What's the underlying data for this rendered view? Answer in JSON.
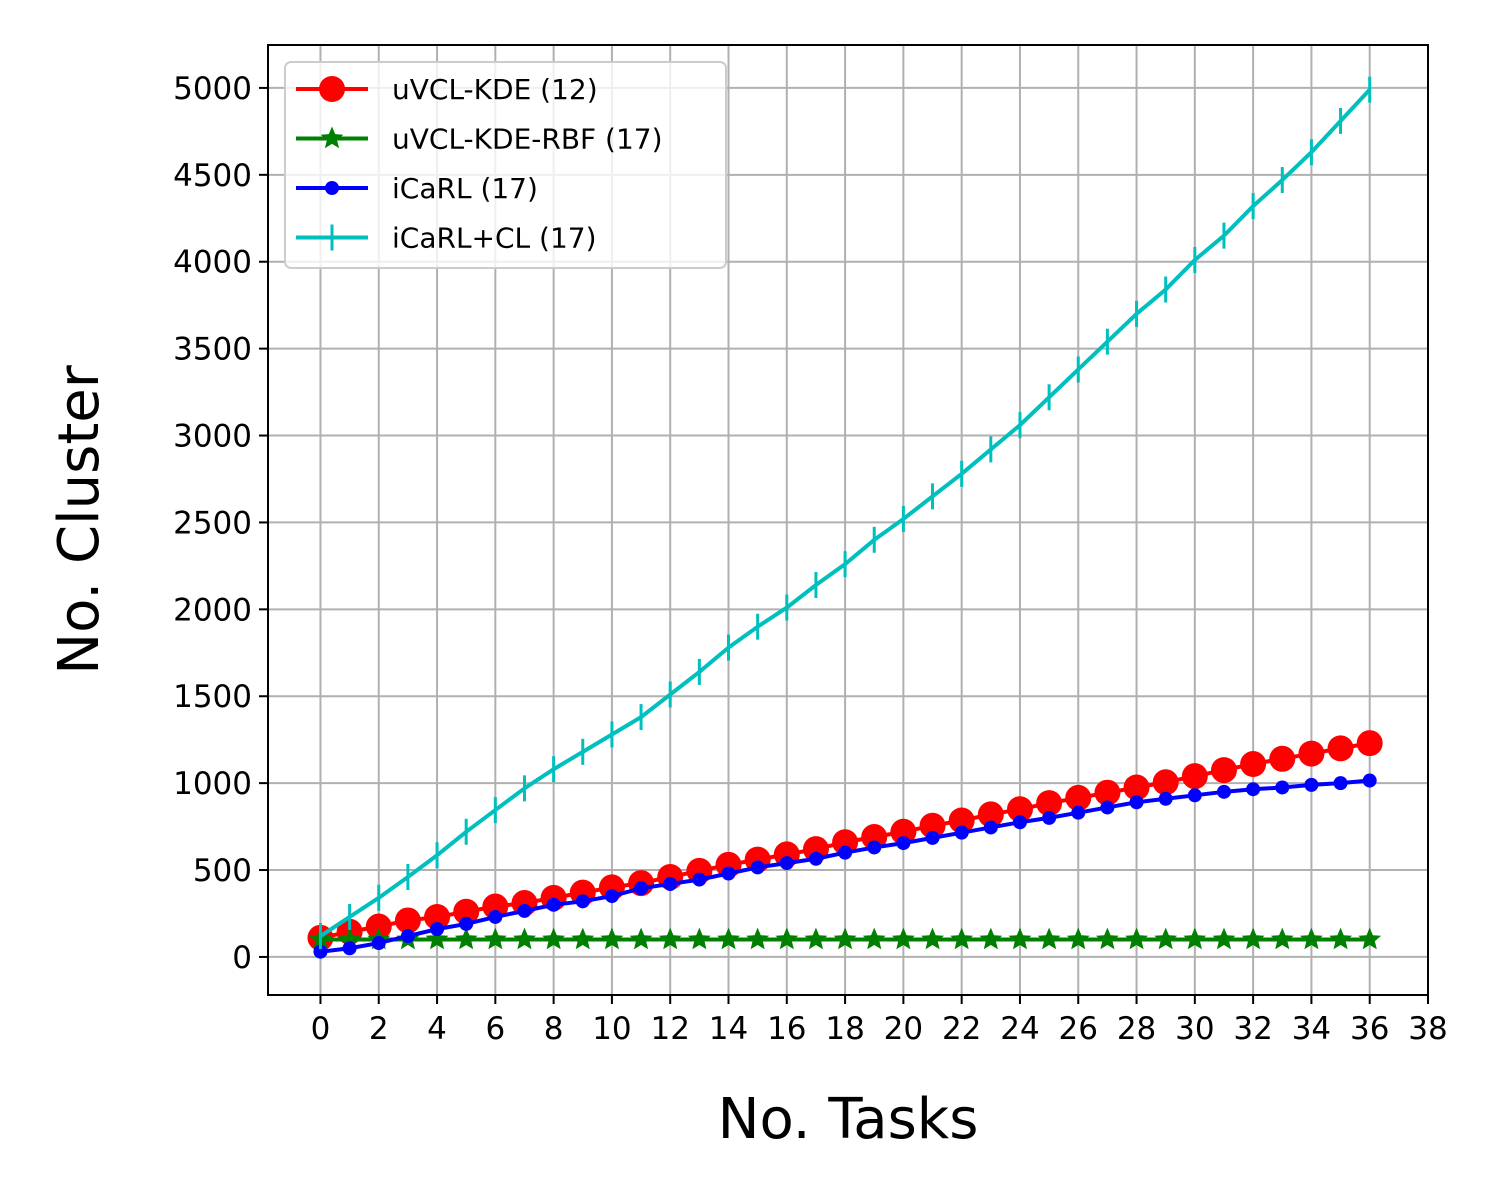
{
  "chart_data": {
    "type": "line",
    "title": "",
    "xlabel": "No. Tasks",
    "ylabel": "No. Cluster",
    "xlim": [
      -1.8,
      38
    ],
    "ylim": [
      -219,
      5247
    ],
    "xticks": [
      0,
      2,
      4,
      6,
      8,
      10,
      12,
      14,
      16,
      18,
      20,
      22,
      24,
      26,
      28,
      30,
      32,
      34,
      36,
      38
    ],
    "yticks": [
      0,
      500,
      1000,
      1500,
      2000,
      2500,
      3000,
      3500,
      4000,
      4500,
      5000
    ],
    "grid": true,
    "legend_position": "top-left",
    "x": [
      0,
      1,
      2,
      3,
      4,
      5,
      6,
      7,
      8,
      9,
      10,
      11,
      12,
      13,
      14,
      15,
      16,
      17,
      18,
      19,
      20,
      21,
      22,
      23,
      24,
      25,
      26,
      27,
      28,
      29,
      30,
      31,
      32,
      33,
      34,
      35,
      36
    ],
    "series": [
      {
        "name": "uVCL-KDE (12)",
        "color": "#ff0000",
        "marker": "circle",
        "values": [
          110,
          145,
          175,
          210,
          230,
          260,
          290,
          310,
          340,
          370,
          400,
          425,
          460,
          495,
          530,
          560,
          590,
          620,
          660,
          690,
          720,
          755,
          785,
          820,
          850,
          885,
          915,
          945,
          975,
          1005,
          1040,
          1075,
          1110,
          1140,
          1170,
          1200,
          1230
        ]
      },
      {
        "name": "uVCL-KDE-RBF (17)",
        "color": "#008000",
        "marker": "star",
        "values": [
          100,
          100,
          100,
          100,
          100,
          100,
          100,
          100,
          100,
          100,
          100,
          100,
          100,
          100,
          100,
          100,
          100,
          100,
          100,
          100,
          100,
          100,
          100,
          100,
          100,
          100,
          100,
          100,
          100,
          100,
          100,
          100,
          100,
          100,
          100,
          100,
          100
        ]
      },
      {
        "name": "iCaRL (17)",
        "color": "#0000ff",
        "marker": "dot",
        "values": [
          30,
          50,
          80,
          120,
          160,
          190,
          230,
          265,
          300,
          320,
          350,
          395,
          420,
          445,
          480,
          515,
          540,
          565,
          600,
          630,
          655,
          685,
          715,
          745,
          775,
          800,
          830,
          860,
          890,
          910,
          930,
          950,
          965,
          975,
          990,
          1000,
          1015
        ]
      },
      {
        "name": "iCaRL+CL (17)",
        "color": "#00bfbf",
        "marker": "vline",
        "values": [
          120,
          230,
          340,
          460,
          585,
          720,
          845,
          970,
          1080,
          1180,
          1280,
          1380,
          1510,
          1640,
          1780,
          1900,
          2010,
          2140,
          2260,
          2400,
          2520,
          2650,
          2780,
          2920,
          3060,
          3220,
          3380,
          3540,
          3700,
          3840,
          4010,
          4150,
          4320,
          4470,
          4630,
          4810,
          4990
        ]
      }
    ]
  }
}
